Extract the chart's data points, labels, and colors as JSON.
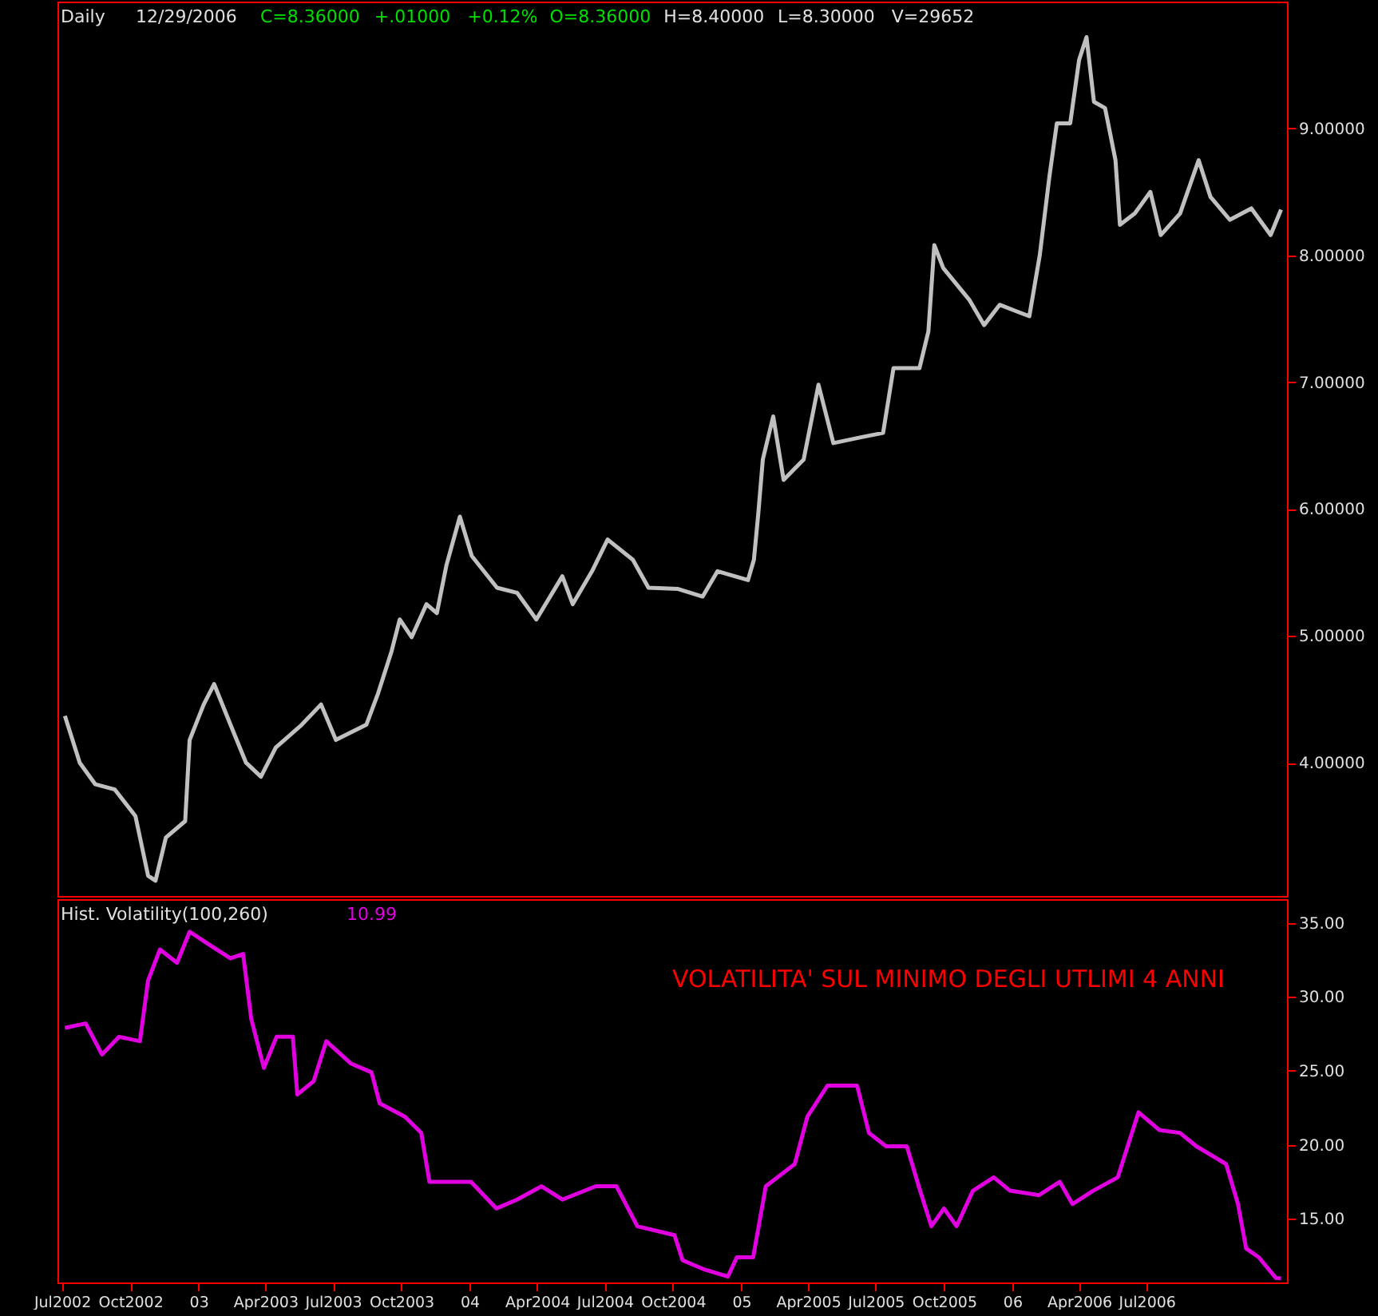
{
  "chart_data": [
    {
      "type": "line",
      "title": "Daily",
      "annotations": [
        "12/29/2006",
        "C=8.36000",
        "+.01000",
        "+0.12%",
        "O=8.36000",
        "H=8.40000",
        "L=8.30000",
        "V=29652"
      ],
      "xlim": [
        "2002-06-25",
        "2007-01-06"
      ],
      "ylim": [
        2.95,
        10.0
      ],
      "yticks": [
        {
          "value": 4,
          "label": "4.00000"
        },
        {
          "value": 5,
          "label": "5.00000"
        },
        {
          "value": 6,
          "label": "6.00000"
        },
        {
          "value": 7,
          "label": "7.00000"
        },
        {
          "value": 8,
          "label": "8.00000"
        },
        {
          "value": 9,
          "label": "9.00000"
        }
      ],
      "tick_labels": "y",
      "grid": false,
      "series": [
        {
          "color": "#c0c0c0",
          "x": [
            "2002-07-05",
            "2002-07-25",
            "2002-08-15",
            "2002-09-10",
            "2002-10-08",
            "2002-10-25",
            "2002-11-04",
            "2002-11-18",
            "2002-12-14",
            "2002-12-20",
            "2003-01-08",
            "2003-01-22",
            "2003-02-13",
            "2003-03-06",
            "2003-03-26",
            "2003-04-15",
            "2003-05-20",
            "2003-06-15",
            "2003-07-05",
            "2003-08-15",
            "2003-08-31",
            "2003-09-18",
            "2003-09-29",
            "2003-10-15",
            "2003-11-04",
            "2003-11-18",
            "2003-12-01",
            "2003-12-19",
            "2004-01-04",
            "2004-02-07",
            "2004-03-05",
            "2004-03-31",
            "2004-05-05",
            "2004-05-19",
            "2004-06-14",
            "2004-07-05",
            "2004-08-08",
            "2004-08-29",
            "2004-10-08",
            "2004-11-10",
            "2004-11-30",
            "2005-01-10",
            "2005-01-18",
            "2005-01-24",
            "2005-01-30",
            "2005-02-13",
            "2005-02-27",
            "2005-03-26",
            "2005-04-15",
            "2005-05-05",
            "2005-06-15",
            "2005-07-11",
            "2005-07-25",
            "2005-08-29",
            "2005-09-10",
            "2005-09-18",
            "2005-09-30",
            "2005-11-04",
            "2005-11-24",
            "2005-12-15",
            "2006-01-24",
            "2006-02-07",
            "2006-02-20",
            "2006-03-02",
            "2006-03-20",
            "2006-04-01",
            "2006-04-11",
            "2006-04-21",
            "2006-05-06",
            "2006-05-20",
            "2006-05-26",
            "2006-06-15",
            "2006-07-06",
            "2006-07-20",
            "2006-08-15",
            "2006-09-09",
            "2006-09-25",
            "2006-10-21",
            "2006-11-19",
            "2006-12-15",
            "2006-12-29"
          ],
          "values": [
            4.37,
            4.0,
            3.83,
            3.79,
            3.58,
            3.11,
            3.07,
            3.41,
            3.54,
            4.18,
            4.46,
            4.62,
            4.3,
            4.0,
            3.89,
            4.12,
            4.3,
            4.46,
            4.18,
            4.3,
            4.55,
            4.88,
            5.13,
            4.99,
            5.25,
            5.18,
            5.56,
            5.94,
            5.63,
            5.38,
            5.34,
            5.13,
            5.47,
            5.25,
            5.51,
            5.76,
            5.6,
            5.38,
            5.37,
            5.31,
            5.51,
            5.44,
            5.6,
            5.97,
            6.39,
            6.73,
            6.23,
            6.39,
            6.98,
            6.52,
            6.57,
            6.6,
            7.11,
            7.11,
            7.4,
            8.08,
            7.9,
            7.65,
            7.45,
            7.61,
            7.52,
            8.0,
            8.62,
            9.04,
            9.04,
            9.54,
            9.72,
            9.21,
            9.16,
            8.75,
            8.24,
            8.33,
            8.5,
            8.16,
            8.33,
            8.75,
            8.46,
            8.28,
            8.37,
            8.16,
            8.36
          ]
        }
      ]
    },
    {
      "type": "line",
      "title": "Hist. Volatility(100,260)",
      "annotations": [
        "10.99",
        "VOLATILITA' SUL MINIMO DEGLI UTLIMI 4 ANNI"
      ],
      "xlim": [
        "2002-06-25",
        "2007-01-06"
      ],
      "ylim": [
        10.7,
        36.6
      ],
      "xticks": [
        {
          "value": "2002-07-01",
          "label": "Jul2002"
        },
        {
          "value": "2002-10-01",
          "label": "Oct2002"
        },
        {
          "value": "2003-01-01",
          "label": "03"
        },
        {
          "value": "2003-04-01",
          "label": "Apr2003"
        },
        {
          "value": "2003-07-01",
          "label": "Jul2003"
        },
        {
          "value": "2003-10-01",
          "label": "Oct2003"
        },
        {
          "value": "2004-01-01",
          "label": "04"
        },
        {
          "value": "2004-04-01",
          "label": "Apr2004"
        },
        {
          "value": "2004-07-01",
          "label": "Jul2004"
        },
        {
          "value": "2004-10-01",
          "label": "Oct2004"
        },
        {
          "value": "2005-01-01",
          "label": "05"
        },
        {
          "value": "2005-04-01",
          "label": "Apr2005"
        },
        {
          "value": "2005-07-01",
          "label": "Jul2005"
        },
        {
          "value": "2005-10-01",
          "label": "Oct2005"
        },
        {
          "value": "2006-01-01",
          "label": "06"
        },
        {
          "value": "2006-04-01",
          "label": "Apr2006"
        },
        {
          "value": "2006-07-01",
          "label": "Jul2006"
        }
      ],
      "yticks": [
        {
          "value": 15,
          "label": "15.00"
        },
        {
          "value": 20,
          "label": "20.00"
        },
        {
          "value": 25,
          "label": "25.00"
        },
        {
          "value": 30,
          "label": "30.00"
        },
        {
          "value": 35,
          "label": "35.00"
        }
      ],
      "grid": false,
      "series": [
        {
          "color": "#e000e0",
          "x": [
            "2002-07-05",
            "2002-08-02",
            "2002-08-24",
            "2002-09-16",
            "2002-10-14",
            "2002-10-25",
            "2002-11-10",
            "2002-12-03",
            "2002-12-20",
            "2003-01-16",
            "2003-02-13",
            "2003-03-02",
            "2003-03-13",
            "2003-03-30",
            "2003-04-16",
            "2003-05-08",
            "2003-05-14",
            "2003-06-05",
            "2003-06-22",
            "2003-07-25",
            "2003-08-22",
            "2003-09-02",
            "2003-10-06",
            "2003-10-28",
            "2003-11-08",
            "2004-01-03",
            "2004-02-06",
            "2004-03-05",
            "2004-04-07",
            "2004-05-05",
            "2004-06-19",
            "2004-07-17",
            "2004-08-14",
            "2004-10-03",
            "2004-10-14",
            "2004-11-11",
            "2004-12-14",
            "2004-12-26",
            "2005-01-17",
            "2005-02-03",
            "2005-03-14",
            "2005-03-31",
            "2005-04-27",
            "2005-06-06",
            "2005-06-22",
            "2005-07-15",
            "2005-08-12",
            "2005-08-28",
            "2005-09-14",
            "2005-10-01",
            "2005-10-18",
            "2005-11-09",
            "2005-12-07",
            "2005-12-29",
            "2006-02-06",
            "2006-03-06",
            "2006-03-23",
            "2006-04-20",
            "2006-05-23",
            "2006-06-20",
            "2006-07-18",
            "2006-08-15",
            "2006-09-06",
            "2006-10-16",
            "2006-11-01",
            "2006-11-12",
            "2006-11-29",
            "2006-12-22",
            "2006-12-29"
          ],
          "values": [
            27.9,
            28.2,
            26.1,
            27.3,
            27.0,
            31.1,
            33.2,
            32.3,
            34.4,
            33.5,
            32.6,
            32.9,
            28.5,
            25.2,
            27.3,
            27.3,
            23.4,
            24.3,
            27.0,
            25.5,
            24.9,
            22.8,
            21.9,
            20.8,
            17.5,
            17.5,
            15.7,
            16.3,
            17.2,
            16.3,
            17.2,
            17.2,
            14.5,
            13.9,
            12.2,
            11.6,
            11.1,
            12.4,
            12.4,
            17.2,
            18.7,
            21.9,
            24.0,
            24.0,
            20.8,
            19.9,
            19.9,
            17.2,
            14.5,
            15.7,
            14.5,
            16.9,
            17.8,
            16.9,
            16.6,
            17.5,
            16.0,
            16.9,
            17.8,
            22.2,
            21.0,
            20.8,
            19.9,
            18.7,
            16.0,
            13.0,
            12.4,
            11.0,
            10.99
          ]
        }
      ]
    }
  ]
}
